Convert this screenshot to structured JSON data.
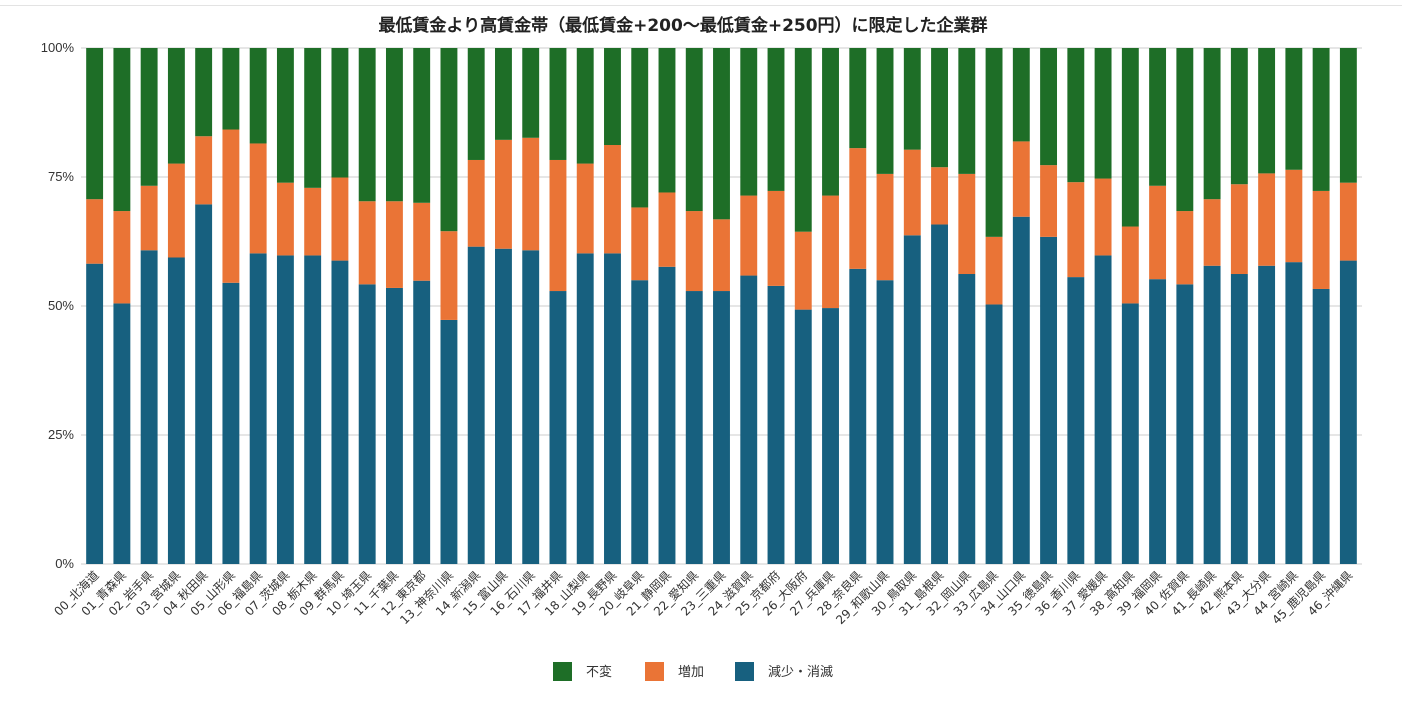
{
  "chart_data": {
    "type": "bar",
    "stacked": true,
    "normalized": true,
    "title": "最低賃金より高賃金帯（最低賃金+200～最低賃金+250円）に限定した企業群",
    "xlabel": "",
    "ylabel": "",
    "ylim": [
      0,
      100
    ],
    "yticks": [
      "0%",
      "25%",
      "50%",
      "75%",
      "100%"
    ],
    "grid": true,
    "legend_position": "bottom",
    "categories": [
      "00_北海道",
      "01_青森県",
      "02_岩手県",
      "03_宮城県",
      "04_秋田県",
      "05_山形県",
      "06_福島県",
      "07_茨城県",
      "08_栃木県",
      "09_群馬県",
      "10_埼玉県",
      "11_千葉県",
      "12_東京都",
      "13_神奈川県",
      "14_新潟県",
      "15_富山県",
      "16_石川県",
      "17_福井県",
      "18_山梨県",
      "19_長野県",
      "20_岐阜県",
      "21_静岡県",
      "22_愛知県",
      "23_三重県",
      "24_滋賀県",
      "25_京都府",
      "26_大阪府",
      "27_兵庫県",
      "28_奈良県",
      "29_和歌山県",
      "30_鳥取県",
      "31_島根県",
      "32_岡山県",
      "33_広島県",
      "34_山口県",
      "35_徳島県",
      "36_香川県",
      "37_愛媛県",
      "38_高知県",
      "39_福岡県",
      "40_佐賀県",
      "41_長崎県",
      "42_熊本県",
      "43_大分県",
      "44_宮崎県",
      "45_鹿児島県",
      "46_沖縄県"
    ],
    "series": [
      {
        "name": "減少・消滅",
        "color": "#17607f",
        "values": [
          58.2,
          50.5,
          60.8,
          59.4,
          69.7,
          54.5,
          60.2,
          59.8,
          59.8,
          58.8,
          54.2,
          53.5,
          54.9,
          47.3,
          61.5,
          61.1,
          60.8,
          52.9,
          60.2,
          60.2,
          55.0,
          57.6,
          52.9,
          52.9,
          55.9,
          53.9,
          49.3,
          49.6,
          57.2,
          55.0,
          63.7,
          65.8,
          56.2,
          50.3,
          67.3,
          63.4,
          55.6,
          59.8,
          50.5,
          55.2,
          54.2,
          57.8,
          56.2,
          57.8,
          58.5,
          53.3,
          58.8
        ]
      },
      {
        "name": "増加",
        "color": "#ea7436",
        "values": [
          12.5,
          17.9,
          12.5,
          18.2,
          13.2,
          29.7,
          21.3,
          14.1,
          13.1,
          16.1,
          16.1,
          16.8,
          15.1,
          17.2,
          16.8,
          21.1,
          21.8,
          25.4,
          17.4,
          21.0,
          14.1,
          14.4,
          15.5,
          13.9,
          15.5,
          18.4,
          15.1,
          21.8,
          23.4,
          20.6,
          16.6,
          11.1,
          19.4,
          13.1,
          14.6,
          13.9,
          18.4,
          14.9,
          14.9,
          18.1,
          14.2,
          12.9,
          17.4,
          17.9,
          17.9,
          19.0,
          15.1
        ]
      },
      {
        "name": "不変",
        "color": "#1e6e27",
        "values": [
          29.3,
          31.6,
          26.7,
          22.4,
          17.1,
          15.8,
          18.5,
          26.1,
          27.1,
          25.1,
          29.7,
          29.7,
          30.0,
          35.5,
          21.7,
          17.8,
          17.4,
          21.7,
          22.4,
          18.8,
          30.9,
          28.0,
          31.6,
          33.2,
          28.6,
          27.7,
          35.6,
          28.6,
          19.4,
          24.4,
          19.7,
          23.1,
          24.4,
          36.6,
          18.1,
          22.7,
          26.0,
          25.3,
          34.6,
          26.7,
          31.6,
          29.3,
          26.4,
          24.3,
          23.6,
          27.7,
          26.1
        ]
      }
    ],
    "legend": [
      "不変",
      "増加",
      "減少・消滅"
    ]
  }
}
